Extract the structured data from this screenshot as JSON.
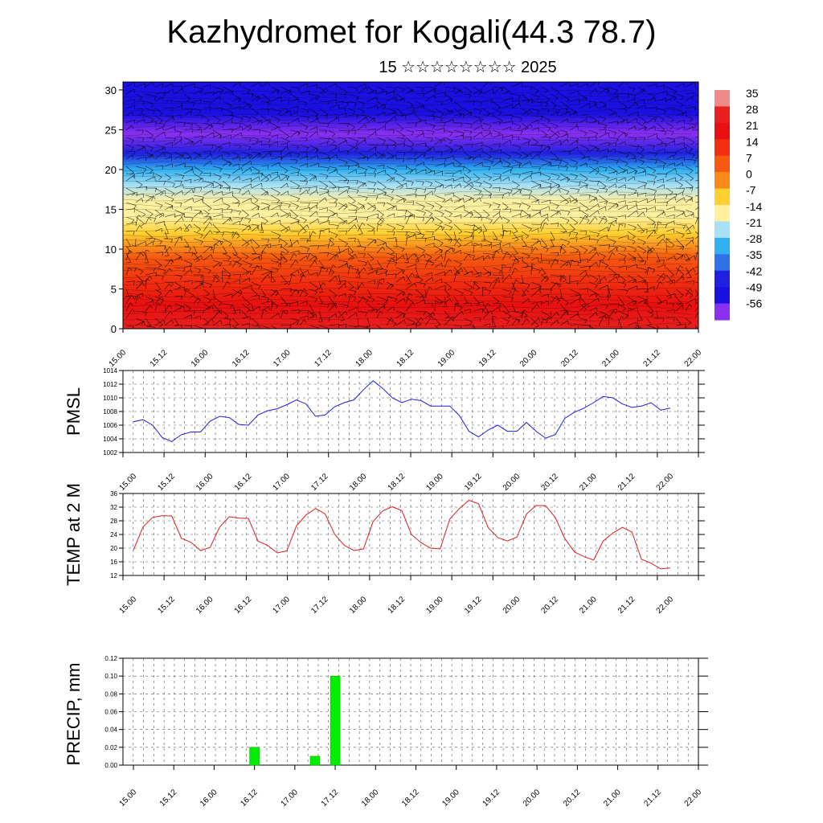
{
  "title": "Kazhydromet for Kogali(44.3 78.7)",
  "subtitle": "15 ☆☆☆☆☆☆☆☆ 2025",
  "time_labels": [
    "15.00",
    "15.12",
    "16.00",
    "16.12",
    "17.00",
    "17.12",
    "18.00",
    "18.12",
    "19.00",
    "19.12",
    "20.00",
    "20.12",
    "21.00",
    "21.12",
    "22.00"
  ],
  "colors": {
    "pmsl": "#1f1fe0",
    "temp": "#e01f1f",
    "precip": "#00ee00"
  },
  "chart_data": [
    {
      "type": "heatmap",
      "title": "Kazhydromet for Kogali(44.3 78.7)",
      "x_tick_labels": [
        "15.00",
        "15.12",
        "16.00",
        "16.12",
        "17.00",
        "17.12",
        "18.00",
        "18.12",
        "19.00",
        "19.12",
        "20.00",
        "20.12",
        "21.00",
        "21.12",
        "22.00"
      ],
      "y_ticks": [
        0,
        5,
        10,
        15,
        20,
        25,
        30
      ],
      "ylim": [
        0,
        31
      ],
      "colorbar_labels": [
        "35",
        "28",
        "21",
        "14",
        "7",
        "0",
        "-7",
        "-14",
        "-21",
        "-28",
        "-35",
        "-42",
        "-49",
        "-56"
      ],
      "colorbar_colors": [
        "#f08a8a",
        "#e82020",
        "#e81010",
        "#f03010",
        "#f55a10",
        "#fa8a18",
        "#ffd030",
        "#fff0a0",
        "#a8e0f5",
        "#30b0f0",
        "#3070e8",
        "#2020e0",
        "#1a10e0",
        "#8a30f0"
      ],
      "temperature_profile": [
        {
          "height": 0,
          "temp": 30
        },
        {
          "height": 3,
          "temp": 24
        },
        {
          "height": 6,
          "temp": 14
        },
        {
          "height": 9,
          "temp": 5
        },
        {
          "height": 12,
          "temp": -6
        },
        {
          "height": 14,
          "temp": -12
        },
        {
          "height": 16,
          "temp": -15
        },
        {
          "height": 18,
          "temp": -22
        },
        {
          "height": 20,
          "temp": -30
        },
        {
          "height": 22,
          "temp": -40
        },
        {
          "height": 24.5,
          "temp": -58
        },
        {
          "height": 27,
          "temp": -52
        },
        {
          "height": 31,
          "temp": -46
        }
      ]
    },
    {
      "type": "line",
      "ylabel": "PMSL",
      "ylim": [
        1002,
        1014
      ],
      "y_ticks": [
        1002,
        1004,
        1006,
        1008,
        1010,
        1012,
        1014
      ],
      "x_tick_labels": [
        "15.00",
        "15.12",
        "16.00",
        "16.12",
        "17.00",
        "17.12",
        "18.00",
        "18.12",
        "19.00",
        "19.12",
        "20.00",
        "20.12",
        "21.00",
        "21.12",
        "22.00"
      ],
      "series": [
        {
          "values": [
            1006.5,
            1006.8,
            1006.0,
            1004.2,
            1003.6,
            1004.6,
            1005.0,
            1005.0,
            1006.6,
            1007.3,
            1007.1,
            1006.1,
            1006.0,
            1007.5,
            1008.1,
            1008.4,
            1009.0,
            1009.7,
            1009.1,
            1007.3,
            1007.5,
            1008.7,
            1009.3,
            1009.7,
            1011.2,
            1012.5,
            1011.4,
            1010.0,
            1009.3,
            1009.8,
            1009.6,
            1008.8,
            1008.8,
            1008.8,
            1007.4,
            1005.1,
            1004.3,
            1005.3,
            1006.0,
            1005.1,
            1005.1,
            1006.4,
            1005.1,
            1004.1,
            1004.6,
            1007.0,
            1007.9,
            1008.5,
            1009.3,
            1010.2,
            1010.0,
            1009.1,
            1008.6,
            1008.8,
            1009.3,
            1008.2,
            1008.5
          ]
        }
      ]
    },
    {
      "type": "line",
      "ylabel": "TEMP at 2 M",
      "ylim": [
        12,
        36
      ],
      "y_ticks": [
        12,
        16,
        20,
        24,
        28,
        32,
        36
      ],
      "x_tick_labels": [
        "15.00",
        "15.12",
        "16.00",
        "16.12",
        "17.00",
        "17.12",
        "18.00",
        "18.12",
        "19.00",
        "19.12",
        "20.00",
        "20.12",
        "21.00",
        "21.12",
        "22.00"
      ],
      "series": [
        {
          "values": [
            19.4,
            26.2,
            29.0,
            29.5,
            29.4,
            22.9,
            21.7,
            19.3,
            20.2,
            26.2,
            29.2,
            28.8,
            28.7,
            22.0,
            20.8,
            18.6,
            19.2,
            26.5,
            29.7,
            31.6,
            30.0,
            24.0,
            20.8,
            19.3,
            19.8,
            27.8,
            30.9,
            32.1,
            31.0,
            24.0,
            21.6,
            20.0,
            19.8,
            28.5,
            31.6,
            34.0,
            33.0,
            26.0,
            23.1,
            22.1,
            23.2,
            30.0,
            32.5,
            32.4,
            29.0,
            22.8,
            18.9,
            17.5,
            16.5,
            22.1,
            24.4,
            26.1,
            24.7,
            16.7,
            15.6,
            13.9,
            14.2
          ]
        }
      ]
    },
    {
      "type": "bar",
      "ylabel": "PRECIP, mm",
      "ylim": [
        0,
        0.12
      ],
      "y_ticks": [
        "0.00",
        "0.02",
        "0.04",
        "0.06",
        "0.08",
        "0.10",
        "0.12"
      ],
      "x_tick_labels": [
        "15.00",
        "15.12",
        "16.00",
        "16.12",
        "17.00",
        "17.12",
        "18.00",
        "18.12",
        "19.00",
        "19.12",
        "20.00",
        "20.12",
        "21.00",
        "21.12",
        "22.00"
      ],
      "bars": [
        {
          "x": "16.12",
          "value": 0.02
        },
        {
          "x": "17.06",
          "value": 0.01
        },
        {
          "x": "17.12",
          "value": 0.1
        }
      ]
    }
  ]
}
